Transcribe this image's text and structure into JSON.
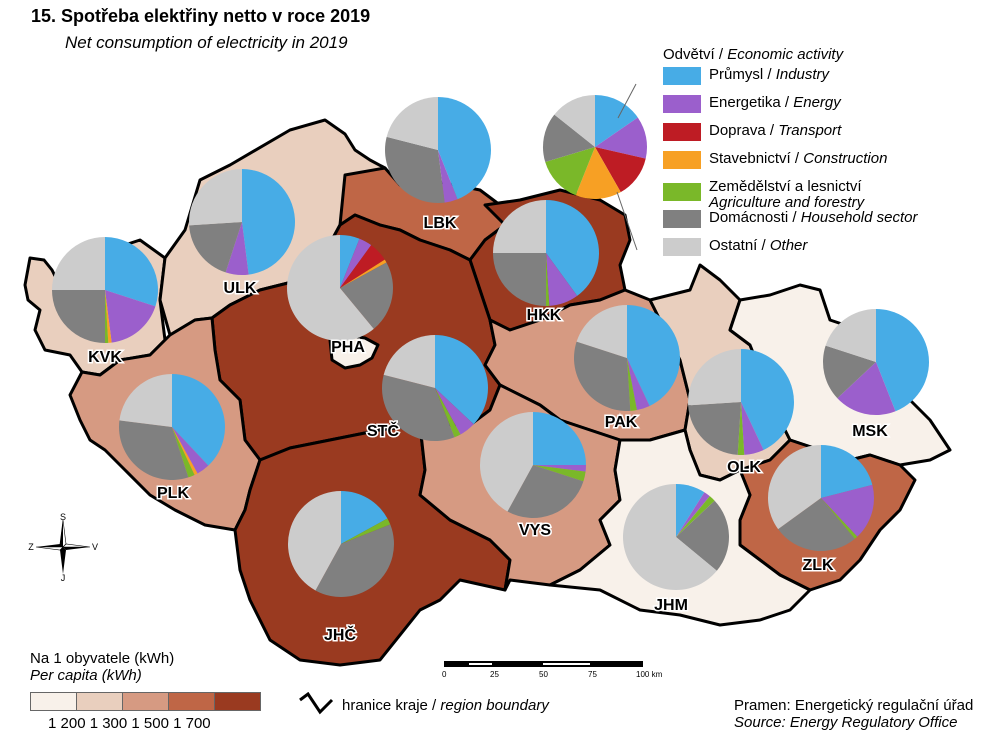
{
  "title": "15. Spotřeba elektřiny netto v roce 2019",
  "subtitle": "Net consumption of electricity in 2019",
  "legend": {
    "heading_cz": "Odvětví",
    "heading_en": "Economic activity",
    "items": [
      {
        "cz": "Průmysl",
        "en": "Industry",
        "color": "#47ace6"
      },
      {
        "cz": "Energetika",
        "en": "Energy",
        "color": "#9b5fcc"
      },
      {
        "cz": "Doprava",
        "en": "Transport",
        "color": "#be1c24"
      },
      {
        "cz": "Stavebnictví",
        "en": "Construction",
        "color": "#f7a024"
      },
      {
        "cz": "Zemědělství a lesnictví",
        "en": "Agriculture and forestry",
        "color": "#7ab829"
      },
      {
        "cz": "Domácnosti",
        "en": "Household sector",
        "color": "#808080"
      },
      {
        "cz": "Ostatní",
        "en": "Other",
        "color": "#cccccc"
      }
    ],
    "example_pie": [
      14,
      12,
      12,
      13,
      13,
      14,
      13
    ]
  },
  "per_capita": {
    "label_cz": "Na 1 obyvatele (kWh)",
    "label_en": "Per capita (kWh)",
    "classes": [
      "#f8f1ea",
      "#e9cfbe",
      "#d69a82",
      "#bf6646",
      "#9a3a20"
    ],
    "breaks": "1 200 1 300 1 500 1 700"
  },
  "boundary": {
    "cz": "hranice kraje",
    "en": "region boundary"
  },
  "scale": {
    "ticks": [
      "0",
      "25",
      "50",
      "75",
      "100 km"
    ]
  },
  "compass": {
    "n": "S",
    "s": "J",
    "w": "Z",
    "e": "V"
  },
  "source": {
    "cz": "Pramen: Energetický regulační úřad",
    "en": "Source: Energy Regulatory Office"
  },
  "regions": [
    {
      "code": "PHA",
      "class": 0,
      "shares": [
        6,
        4,
        6,
        1,
        0,
        22,
        61
      ]
    },
    {
      "code": "STČ",
      "class": 4,
      "shares": [
        37,
        5,
        0,
        0,
        2,
        35,
        21
      ]
    },
    {
      "code": "JHČ",
      "class": 4,
      "shares": [
        17,
        0,
        0,
        0,
        2,
        39,
        42
      ]
    },
    {
      "code": "PLK",
      "class": 2,
      "shares": [
        38,
        4,
        0,
        1,
        2,
        32,
        23
      ]
    },
    {
      "code": "KVK",
      "class": 1,
      "shares": [
        30,
        18,
        0,
        1,
        1,
        25,
        25
      ]
    },
    {
      "code": "ULK",
      "class": 1,
      "shares": [
        48,
        7,
        0,
        0,
        0,
        19,
        26
      ]
    },
    {
      "code": "LBK",
      "class": 3,
      "shares": [
        44,
        4,
        0,
        0,
        0,
        31,
        21
      ]
    },
    {
      "code": "HKK",
      "class": 4,
      "shares": [
        40,
        9,
        0,
        0,
        1,
        25,
        25
      ]
    },
    {
      "code": "PAK",
      "class": 2,
      "shares": [
        43,
        4,
        0,
        0,
        2,
        31,
        20
      ]
    },
    {
      "code": "VYS",
      "class": 2,
      "shares": [
        25,
        2,
        0,
        0,
        3,
        28,
        42
      ]
    },
    {
      "code": "JHM",
      "class": 0,
      "shares": [
        9,
        2,
        0,
        0,
        2,
        23,
        64
      ]
    },
    {
      "code": "OLK",
      "class": 1,
      "shares": [
        43,
        6,
        0,
        0,
        2,
        23,
        26
      ]
    },
    {
      "code": "ZLK",
      "class": 3,
      "shares": [
        21,
        17,
        0,
        0,
        1,
        26,
        35
      ]
    },
    {
      "code": "MSK",
      "class": 0,
      "shares": [
        44,
        19,
        0,
        0,
        0,
        17,
        20
      ]
    }
  ]
}
